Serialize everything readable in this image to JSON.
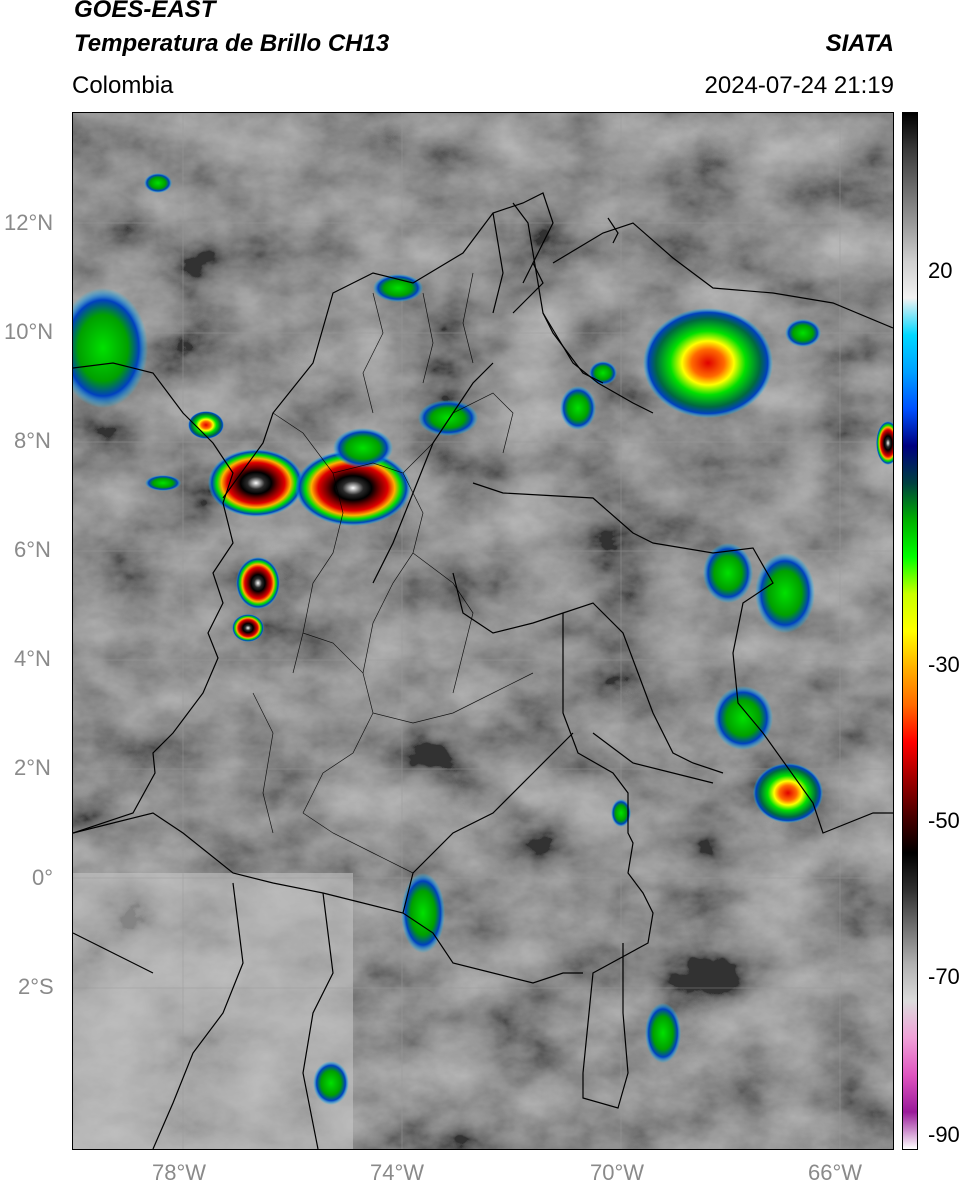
{
  "header": {
    "satellite": "GOES-EAST",
    "product": "Temperatura de Brillo CH13",
    "brand": "SIATA",
    "region": "Colombia",
    "datetime": "2024-07-24 21:19"
  },
  "map": {
    "lat_ticks": [
      "12°N",
      "10°N",
      "8°N",
      "6°N",
      "4°N",
      "2°N",
      "0°",
      "2°S"
    ],
    "lon_ticks": [
      "78°W",
      "74°W",
      "70°W",
      "66°W"
    ],
    "colorbar": {
      "ticks": [
        "20",
        "-30",
        "-50",
        "-70",
        "-90"
      ],
      "colors": [
        "#ffffff",
        "#9a1a9a",
        "#e055c0",
        "#f0a0d8",
        "#dcdcdc",
        "#b0b0b0",
        "#707070",
        "#303030",
        "#000000",
        "#4a0000",
        "#a00000",
        "#ff0000",
        "#ff6a00",
        "#ffb000",
        "#ffff00",
        "#c8ff00",
        "#00ff00",
        "#00b000",
        "#004040",
        "#000080",
        "#0050ff",
        "#00a0ff",
        "#00d8ff",
        "#f2f2f2",
        "#cfcfcf",
        "#9a9a9a",
        "#6a6a6a",
        "#3a3a3a",
        "#000000"
      ]
    }
  }
}
